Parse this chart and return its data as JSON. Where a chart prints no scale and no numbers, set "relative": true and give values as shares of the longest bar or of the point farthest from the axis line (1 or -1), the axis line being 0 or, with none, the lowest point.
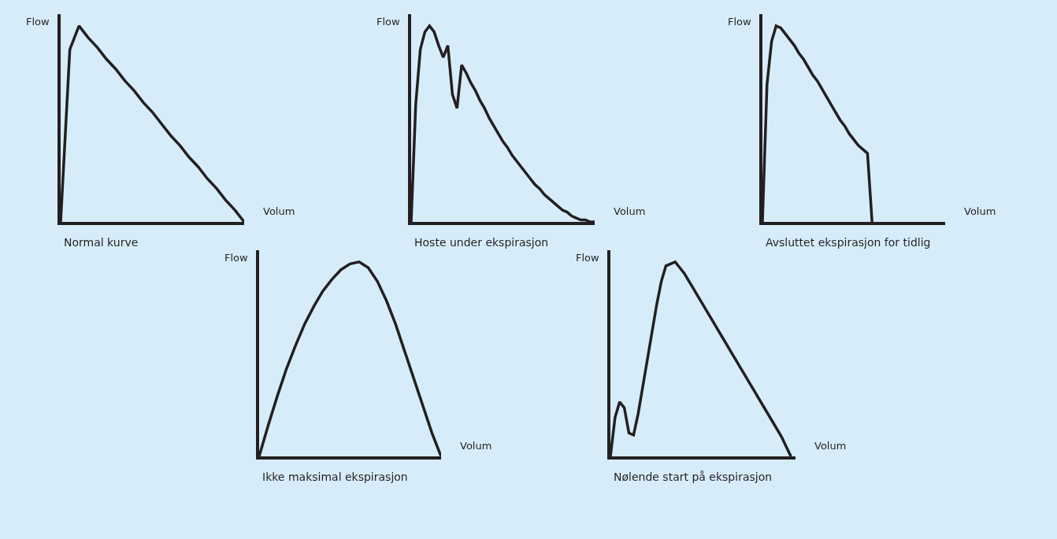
{
  "chart_data": [
    {
      "type": "line",
      "relative": true,
      "title": "Normal kurve",
      "xlabel": "Volum",
      "ylabel": "Flow",
      "categories": [
        null,
        null,
        null,
        null,
        null,
        null,
        null,
        null,
        null,
        null,
        null,
        null,
        null,
        null,
        null,
        null,
        null,
        null,
        null,
        null,
        null
      ],
      "series": [
        {
          "color": "#231f20",
          "values": [
            0,
            0.88,
            1.0,
            0.94,
            0.89,
            0.83,
            0.78,
            0.72,
            0.67,
            0.61,
            0.56,
            0.5,
            0.44,
            0.39,
            0.33,
            0.28,
            0.22,
            0.17,
            0.11,
            0.06,
            0
          ]
        }
      ]
    },
    {
      "type": "line",
      "relative": true,
      "title": "Hoste under ekspirasjon",
      "xlabel": "Volum",
      "ylabel": "Flow",
      "categories": [
        null,
        null,
        null,
        null,
        null,
        null,
        null,
        null,
        null,
        null,
        null,
        null,
        null,
        null,
        null,
        null,
        null,
        null,
        null,
        null,
        null,
        null,
        null,
        null,
        null,
        null,
        null,
        null,
        null,
        null,
        null,
        null,
        null,
        null,
        null,
        null,
        null,
        null,
        null,
        null,
        null
      ],
      "series": [
        {
          "color": "#231f20",
          "values": [
            0,
            0.6,
            0.88,
            0.97,
            1.0,
            0.97,
            0.9,
            0.84,
            0.9,
            0.65,
            0.58,
            0.8,
            0.76,
            0.71,
            0.67,
            0.62,
            0.58,
            0.53,
            0.49,
            0.45,
            0.41,
            0.38,
            0.34,
            0.31,
            0.28,
            0.25,
            0.22,
            0.19,
            0.17,
            0.14,
            0.12,
            0.1,
            0.08,
            0.06,
            0.05,
            0.03,
            0.02,
            0.01,
            0.01,
            0,
            0
          ]
        }
      ]
    },
    {
      "type": "line",
      "relative": true,
      "title": "Avsluttet ekspirasjon for tidlig",
      "xlabel": "Volum",
      "ylabel": "Flow",
      "categories": [
        null,
        null,
        null,
        null,
        null,
        null,
        null,
        null,
        null,
        null,
        null,
        null,
        null,
        null,
        null,
        null,
        null,
        null,
        null,
        null,
        null,
        null,
        null,
        null,
        null,
        null,
        null,
        null,
        null,
        null,
        null,
        null,
        null,
        null,
        null,
        null,
        null,
        null,
        null,
        null,
        null
      ],
      "series": [
        {
          "color": "#231f20",
          "values": [
            0,
            0.7,
            0.92,
            1.0,
            0.99,
            0.96,
            0.93,
            0.9,
            0.86,
            0.83,
            0.79,
            0.75,
            0.72,
            0.68,
            0.64,
            0.6,
            0.56,
            0.52,
            0.49,
            0.45,
            0.42,
            0.39,
            0.37,
            0.35,
            0,
            null,
            null,
            null,
            null,
            null,
            null,
            null,
            null,
            null,
            null,
            null,
            null,
            null,
            null,
            null,
            null
          ]
        }
      ]
    },
    {
      "type": "line",
      "relative": true,
      "title": "Ikke maksimal ekspirasjon",
      "xlabel": "Volum",
      "ylabel": "Flow",
      "categories": [
        null,
        null,
        null,
        null,
        null,
        null,
        null,
        null,
        null,
        null,
        null,
        null,
        null,
        null,
        null,
        null,
        null,
        null,
        null,
        null,
        null
      ],
      "series": [
        {
          "color": "#231f20",
          "values": [
            0,
            0.16,
            0.31,
            0.45,
            0.57,
            0.68,
            0.77,
            0.85,
            0.91,
            0.96,
            0.99,
            1.0,
            0.97,
            0.9,
            0.8,
            0.68,
            0.54,
            0.4,
            0.26,
            0.12,
            0
          ]
        }
      ]
    },
    {
      "type": "line",
      "relative": true,
      "title": "Nølende start på ekspirasjon",
      "xlabel": "Volum",
      "ylabel": "Flow",
      "categories": [
        null,
        null,
        null,
        null,
        null,
        null,
        null,
        null,
        null,
        null,
        null,
        null,
        null,
        null,
        null,
        null,
        null,
        null,
        null,
        null,
        null,
        null,
        null,
        null,
        null,
        null,
        null,
        null,
        null,
        null,
        null,
        null,
        null,
        null,
        null,
        null,
        null,
        null,
        null,
        null,
        null
      ],
      "series": [
        {
          "color": "#231f20",
          "values": [
            0,
            0.2,
            0.28,
            0.25,
            0.12,
            0.11,
            0.22,
            0.36,
            0.5,
            0.64,
            0.78,
            0.9,
            0.98,
            0.99,
            1.0,
            0.97,
            0.94,
            0.9,
            0.86,
            0.82,
            0.78,
            0.74,
            0.7,
            0.66,
            0.62,
            0.58,
            0.54,
            0.5,
            0.46,
            0.42,
            0.38,
            0.34,
            0.3,
            0.26,
            0.22,
            0.18,
            0.14,
            0.1,
            0.05,
            0,
            null
          ]
        }
      ]
    }
  ]
}
